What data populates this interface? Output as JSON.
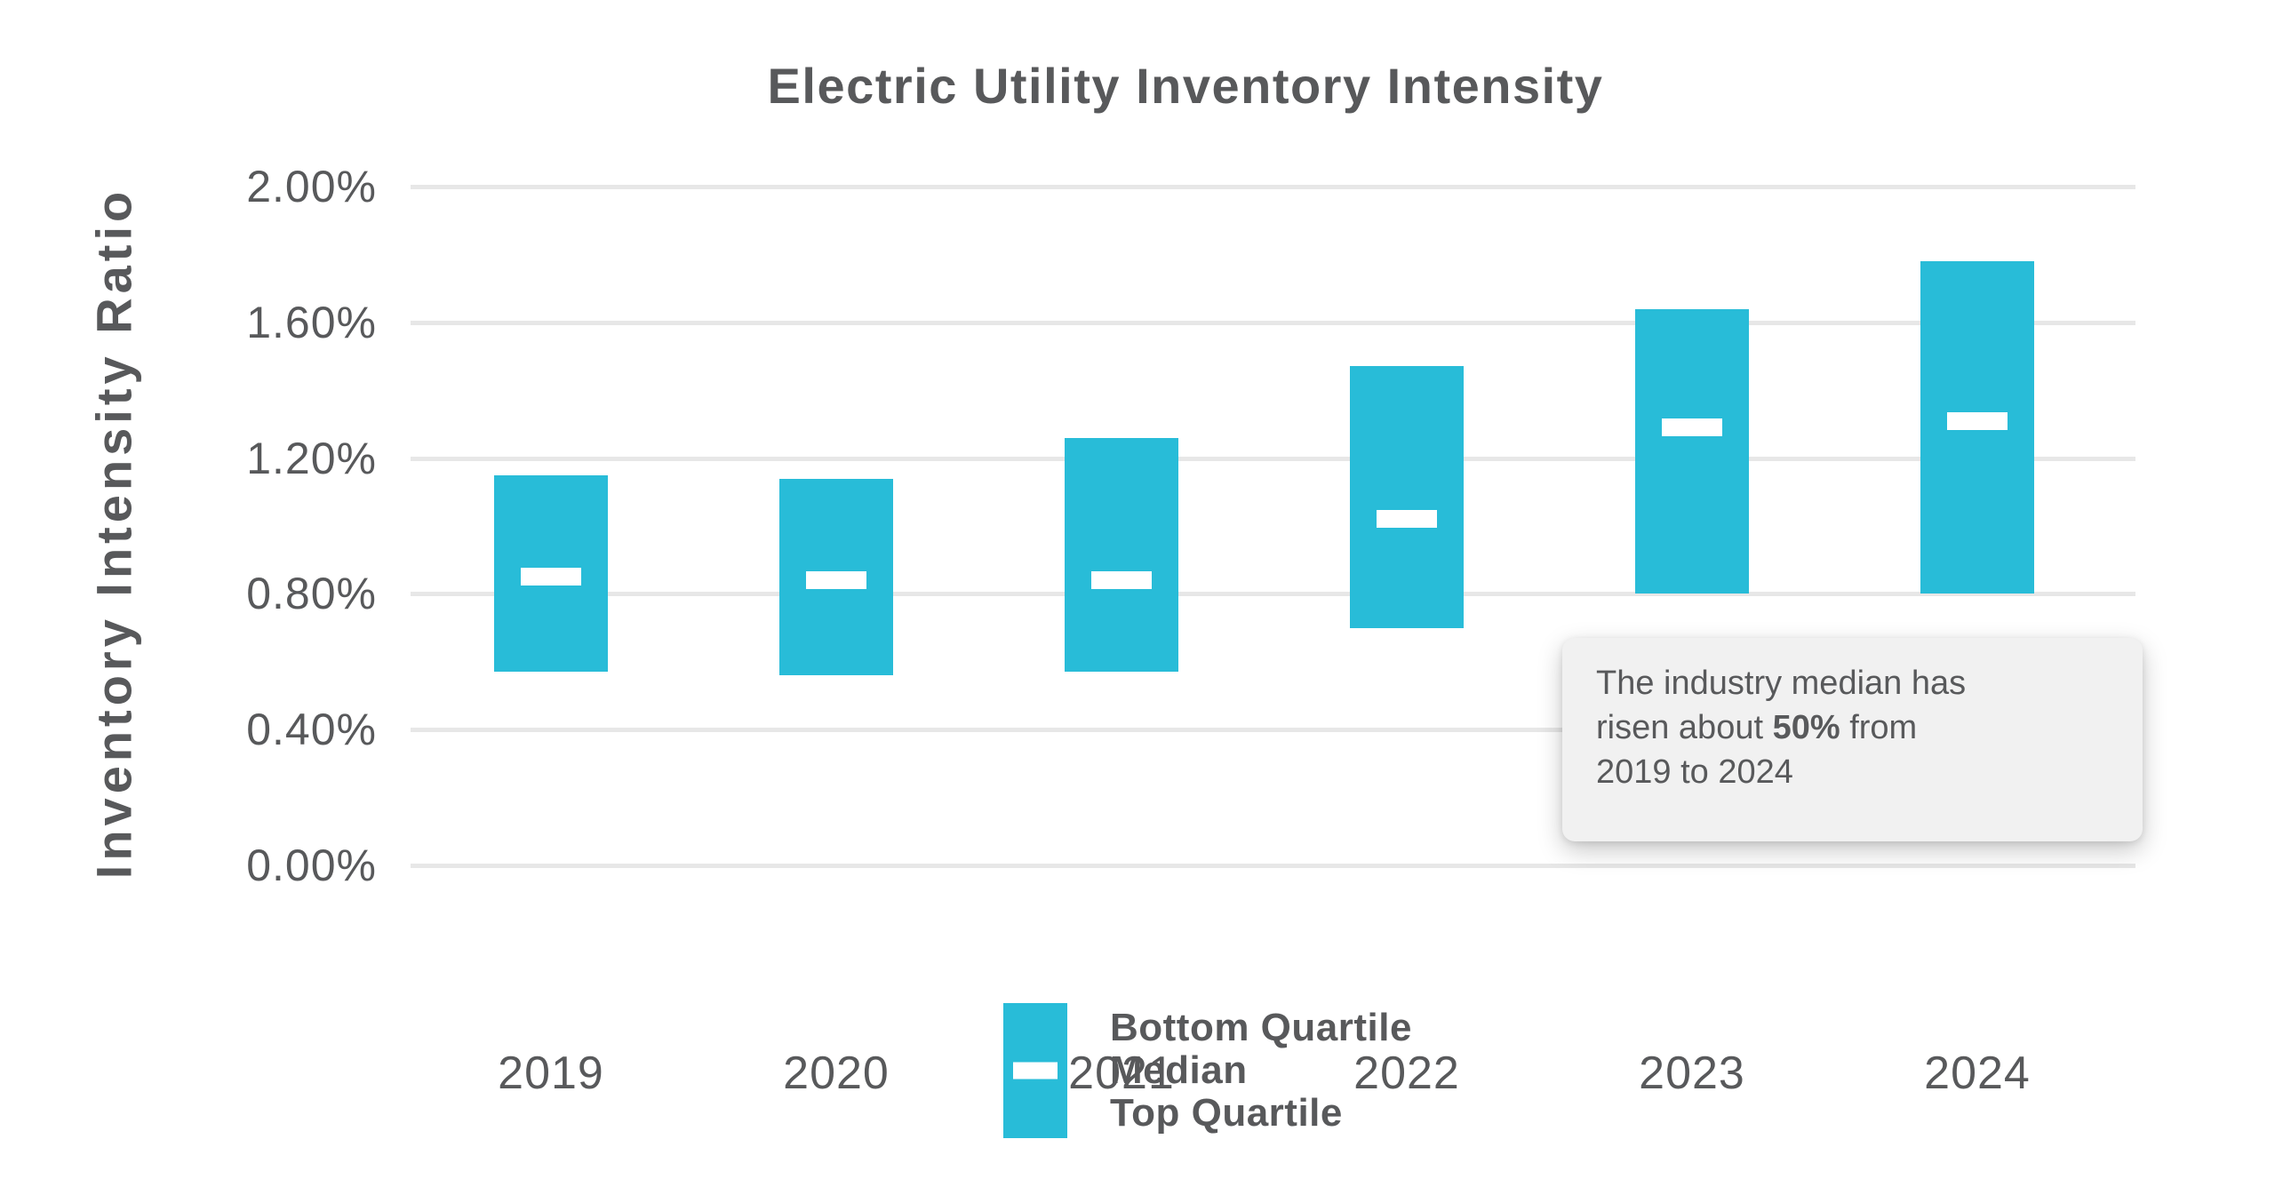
{
  "chart_data": {
    "type": "bar",
    "subtype": "floating-range-bars-with-median",
    "title": "Electric Utility Inventory Intensity",
    "ylabel": "Inventory Intensity Ratio",
    "xlabel": "",
    "categories": [
      "2019",
      "2020",
      "2021",
      "2022",
      "2023",
      "2024"
    ],
    "series": [
      {
        "name": "Bottom Quartile",
        "values": [
          0.57,
          0.56,
          0.57,
          0.7,
          0.8,
          0.8
        ]
      },
      {
        "name": "Median",
        "values": [
          0.85,
          0.84,
          0.84,
          1.02,
          1.29,
          1.31
        ]
      },
      {
        "name": "Top Quartile",
        "values": [
          1.15,
          1.14,
          1.26,
          1.47,
          1.64,
          1.78
        ]
      }
    ],
    "ylim": [
      0,
      2.0
    ],
    "ytick_values": [
      2.0,
      1.6,
      1.2,
      0.8,
      0.4,
      0.0
    ],
    "ytick_labels": [
      "2.00%",
      "1.60%",
      "1.20%",
      "0.80%",
      "0.40%",
      "0.00%"
    ],
    "grid": true,
    "legend_position": "bottom-center",
    "units": "percent"
  },
  "annotation": {
    "lines": [
      {
        "text": "The industry median has"
      },
      {
        "before": "risen about ",
        "bold": "50%",
        "after": " from"
      },
      {
        "text": "2019 to 2024"
      }
    ]
  },
  "colors": {
    "bar": "#28bcd8",
    "median_marker": "#ffffff",
    "text": "#58595b",
    "gridline": "#e7e7e7",
    "annotation_bg": "#f1f1f1",
    "background": "#ffffff"
  }
}
